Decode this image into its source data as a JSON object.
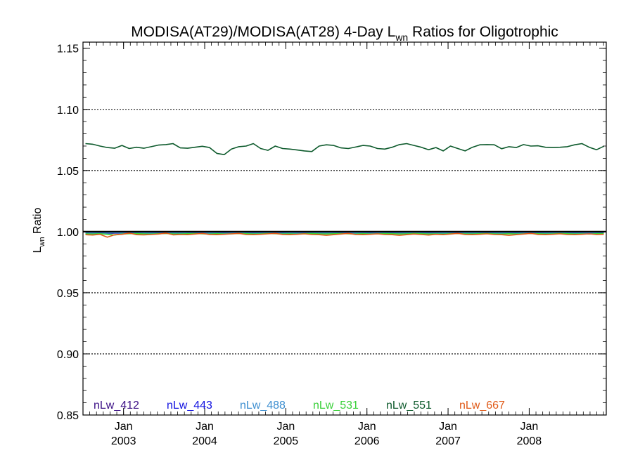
{
  "chart_data": {
    "type": "line",
    "title_main": "MODISA(AT29)/MODISA(AT28) 4-Day L",
    "title_sub": "wn",
    "title_tail": " Ratios for Oligotrophic",
    "ylabel_main": "L",
    "ylabel_sub": "wn",
    "ylabel_tail": " Ratio",
    "ylim": [
      0.85,
      1.155
    ],
    "xlim": [
      2002.5,
      2008.95
    ],
    "yticks": [
      {
        "value": 0.85,
        "label": "0.85"
      },
      {
        "value": 0.9,
        "label": "0.90"
      },
      {
        "value": 0.95,
        "label": "0.95"
      },
      {
        "value": 1.0,
        "label": "1.00"
      },
      {
        "value": 1.05,
        "label": "1.05"
      },
      {
        "value": 1.1,
        "label": "1.10"
      },
      {
        "value": 1.15,
        "label": "1.15"
      }
    ],
    "grid_y": [
      0.9,
      0.95,
      1.05,
      1.1
    ],
    "xticks": [
      {
        "value": 2003.0,
        "month": "Jan",
        "year": "2003"
      },
      {
        "value": 2004.0,
        "month": "Jan",
        "year": "2004"
      },
      {
        "value": 2005.0,
        "month": "Jan",
        "year": "2005"
      },
      {
        "value": 2006.0,
        "month": "Jan",
        "year": "2006"
      },
      {
        "value": 2007.0,
        "month": "Jan",
        "year": "2007"
      },
      {
        "value": 2008.0,
        "month": "Jan",
        "year": "2008"
      }
    ],
    "x": [
      2002.53,
      2002.62,
      2002.71,
      2002.8,
      2002.89,
      2002.98,
      2003.07,
      2003.16,
      2003.25,
      2003.34,
      2003.43,
      2003.52,
      2003.61,
      2003.7,
      2003.79,
      2003.88,
      2003.97,
      2004.06,
      2004.15,
      2004.24,
      2004.33,
      2004.42,
      2004.51,
      2004.6,
      2004.69,
      2004.78,
      2004.87,
      2004.96,
      2005.05,
      2005.14,
      2005.23,
      2005.32,
      2005.41,
      2005.5,
      2005.59,
      2005.68,
      2005.77,
      2005.86,
      2005.95,
      2006.04,
      2006.13,
      2006.22,
      2006.31,
      2006.4,
      2006.49,
      2006.58,
      2006.67,
      2006.76,
      2006.85,
      2006.94,
      2007.03,
      2007.12,
      2007.21,
      2007.3,
      2007.39,
      2007.48,
      2007.57,
      2007.66,
      2007.75,
      2007.84,
      2007.93,
      2008.02,
      2008.11,
      2008.2,
      2008.29,
      2008.38,
      2008.47,
      2008.56,
      2008.65,
      2008.74,
      2008.83,
      2008.92
    ],
    "series": [
      {
        "name": "nLw_412",
        "color": "#3b0f85",
        "values": [
          0.9985,
          0.9987,
          0.9986,
          0.9984,
          0.9987,
          0.9988,
          0.9986,
          0.9985,
          0.9987,
          0.9986,
          0.9984,
          0.9986,
          0.9988,
          0.9987,
          0.9985,
          0.9986,
          0.9987,
          0.9985,
          0.9986,
          0.9988,
          0.9987,
          0.9985,
          0.9986,
          0.9987,
          0.9986,
          0.9984,
          0.9986,
          0.9987,
          0.9988,
          0.9986,
          0.9985,
          0.9986,
          0.9987,
          0.9985,
          0.9986,
          0.9988,
          0.9987,
          0.9985,
          0.9986,
          0.9987,
          0.9986,
          0.9985,
          0.9987,
          0.9986,
          0.9984,
          0.9986,
          0.9988,
          0.9987,
          0.9985,
          0.9986,
          0.9987,
          0.9985,
          0.9986,
          0.9988,
          0.9987,
          0.9985,
          0.9986,
          0.9987,
          0.9986,
          0.9984,
          0.9986,
          0.9987,
          0.9988,
          0.9986,
          0.9985,
          0.9986,
          0.9987,
          0.9985,
          0.9986,
          0.9988,
          0.9987,
          0.9985
        ]
      },
      {
        "name": "nLw_443",
        "color": "#1010e0",
        "values": [
          0.9992,
          0.9993,
          0.9991,
          0.9992,
          0.9994,
          0.9993,
          0.9992,
          0.9991,
          0.9993,
          0.9992,
          0.9991,
          0.9992,
          0.9993,
          0.9994,
          0.9992,
          0.9991,
          0.9992,
          0.9993,
          0.9992,
          0.9991,
          0.9993,
          0.9994,
          0.9992,
          0.9991,
          0.9992,
          0.9993,
          0.9992,
          0.9991,
          0.9993,
          0.9992,
          0.9991,
          0.9992,
          0.9993,
          0.9994,
          0.9992,
          0.9991,
          0.9992,
          0.9993,
          0.9992,
          0.9991,
          0.9993,
          0.9992,
          0.9991,
          0.9992,
          0.9993,
          0.9994,
          0.9992,
          0.9991,
          0.9992,
          0.9993,
          0.9992,
          0.9991,
          0.9993,
          0.9994,
          0.9992,
          0.9991,
          0.9992,
          0.9993,
          0.9992,
          0.9991,
          0.9993,
          0.9992,
          0.9991,
          0.9992,
          0.9993,
          0.9994,
          0.9992,
          0.9991,
          0.9992,
          0.9993,
          0.9992,
          0.9991
        ]
      },
      {
        "name": "nLw_488",
        "color": "#3c8ed0",
        "values": [
          0.9988,
          0.9989,
          0.9987,
          0.9988,
          0.999,
          0.9989,
          0.9988,
          0.9987,
          0.9989,
          0.9988,
          0.9987,
          0.9988,
          0.9989,
          0.999,
          0.9988,
          0.9987,
          0.9988,
          0.9989,
          0.9988,
          0.9987,
          0.9989,
          0.999,
          0.9988,
          0.9987,
          0.9988,
          0.9989,
          0.9988,
          0.9987,
          0.9989,
          0.9988,
          0.9987,
          0.9988,
          0.9989,
          0.999,
          0.9988,
          0.9987,
          0.9988,
          0.9989,
          0.9988,
          0.9987,
          0.9989,
          0.9988,
          0.9987,
          0.9988,
          0.9989,
          0.999,
          0.9988,
          0.9987,
          0.9988,
          0.9989,
          0.9988,
          0.9987,
          0.9989,
          0.999,
          0.9988,
          0.9987,
          0.9988,
          0.9989,
          0.9988,
          0.9987,
          0.9989,
          0.9988,
          0.9987,
          0.9988,
          0.9989,
          0.999,
          0.9988,
          0.9987,
          0.9988,
          0.9989,
          0.9988,
          0.9987
        ]
      },
      {
        "name": "nLw_531",
        "color": "#38d038",
        "values": [
          0.9982,
          0.998,
          0.9983,
          0.9978,
          0.9972,
          0.9981,
          0.9983,
          0.9984,
          0.9982,
          0.998,
          0.9983,
          0.9985,
          0.9982,
          0.9981,
          0.9983,
          0.9984,
          0.9982,
          0.998,
          0.9983,
          0.9981,
          0.9982,
          0.9984,
          0.9983,
          0.9981,
          0.9982,
          0.9984,
          0.9983,
          0.9981,
          0.9982,
          0.998,
          0.9983,
          0.9984,
          0.9982,
          0.9981,
          0.9983,
          0.9984,
          0.9982,
          0.998,
          0.9983,
          0.9981,
          0.9982,
          0.9984,
          0.9983,
          0.9981,
          0.9982,
          0.9984,
          0.9983,
          0.9981,
          0.9982,
          0.998,
          0.9983,
          0.9984,
          0.9982,
          0.9981,
          0.9983,
          0.9984,
          0.9982,
          0.998,
          0.9983,
          0.9981,
          0.9982,
          0.9984,
          0.9983,
          0.9981,
          0.9982,
          0.9984,
          0.9983,
          0.9981,
          0.9982,
          0.998,
          0.9983,
          0.9984
        ]
      },
      {
        "name": "nLw_551",
        "color": "#0d5a2c",
        "values": [
          1.072,
          1.0715,
          1.07,
          1.0688,
          1.0682,
          1.0705,
          1.068,
          1.069,
          1.0682,
          1.0695,
          1.0708,
          1.0712,
          1.072,
          1.0685,
          1.0682,
          1.069,
          1.0698,
          1.0688,
          1.064,
          1.063,
          1.0675,
          1.0695,
          1.07,
          1.072,
          1.068,
          1.0665,
          1.07,
          1.068,
          1.0675,
          1.0668,
          1.066,
          1.0655,
          1.07,
          1.071,
          1.0705,
          1.0685,
          1.068,
          1.0692,
          1.0705,
          1.07,
          1.068,
          1.0675,
          1.069,
          1.0712,
          1.072,
          1.0705,
          1.069,
          1.067,
          1.0688,
          1.066,
          1.07,
          1.068,
          1.066,
          1.069,
          1.071,
          1.0712,
          1.071,
          1.0678,
          1.0695,
          1.0688,
          1.0712,
          1.07,
          1.0702,
          1.069,
          1.0688,
          1.069,
          1.0695,
          1.071,
          1.072,
          1.069,
          1.067,
          1.0698
        ]
      },
      {
        "name": "nLw_667",
        "color": "#e05a18",
        "values": [
          0.9975,
          0.9972,
          0.9978,
          0.9955,
          0.9975,
          0.9978,
          0.9988,
          0.9975,
          0.9974,
          0.9976,
          0.998,
          0.9988,
          0.9974,
          0.9976,
          0.9975,
          0.998,
          0.9986,
          0.9977,
          0.9975,
          0.9978,
          0.9982,
          0.9986,
          0.9976,
          0.9975,
          0.9978,
          0.9982,
          0.9986,
          0.9977,
          0.9975,
          0.9978,
          0.9982,
          0.9976,
          0.9975,
          0.997,
          0.9975,
          0.998,
          0.9986,
          0.9977,
          0.9975,
          0.9978,
          0.9982,
          0.9976,
          0.9975,
          0.997,
          0.9975,
          0.998,
          0.9976,
          0.9972,
          0.9978,
          0.9975,
          0.998,
          0.9986,
          0.9977,
          0.9975,
          0.9978,
          0.9982,
          0.9976,
          0.9975,
          0.997,
          0.9975,
          0.998,
          0.9986,
          0.9977,
          0.9975,
          0.9978,
          0.9982,
          0.9976,
          0.9975,
          0.9978,
          0.9982,
          0.9976,
          0.9978
        ]
      }
    ],
    "reference_line": {
      "value": 1.0,
      "color": "#000000"
    },
    "legend_placement": "bottom-inside"
  }
}
